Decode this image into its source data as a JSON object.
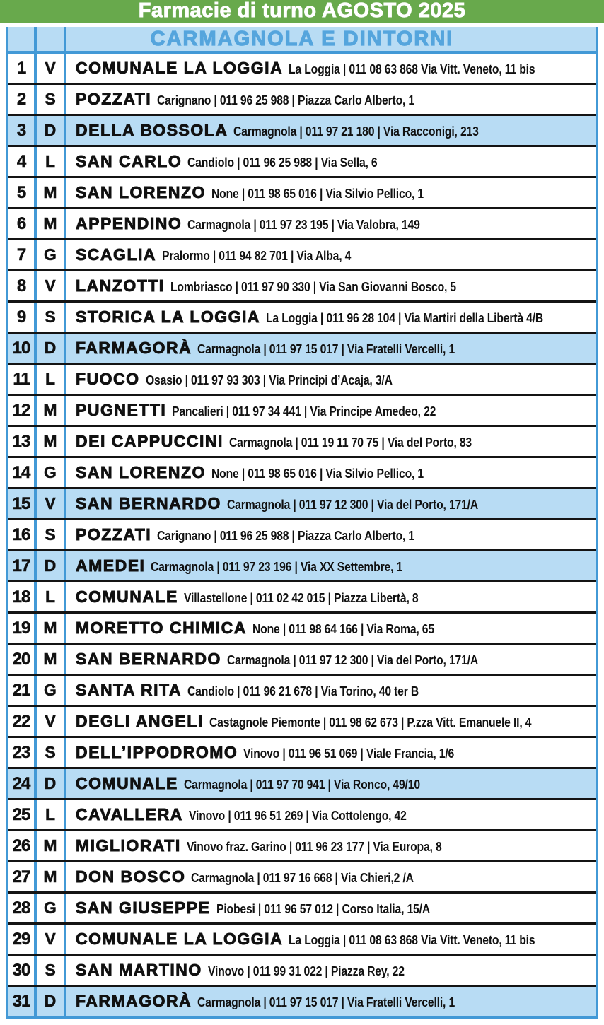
{
  "title": "Farmacie di turno AGOSTO 2025",
  "subtitle": "CARMAGNOLA E DINTORNI",
  "colors": {
    "header_green": "#68a94c",
    "border_blue": "#4299d6",
    "highlight_blue": "#b8dcf4",
    "subtitle_blue": "#55a5dd"
  },
  "rows": [
    {
      "day": "1",
      "weekday": "V",
      "name": "COMUNALE LA LOGGIA",
      "details": "La Loggia | 011 08 63 868 Via Vitt. Veneto, 11 bis",
      "highlight": false
    },
    {
      "day": "2",
      "weekday": "S",
      "name": "POZZATI",
      "details": "Carignano | 011 96 25 988 | Piazza Carlo Alberto, 1",
      "highlight": false
    },
    {
      "day": "3",
      "weekday": "D",
      "name": "DELLA BOSSOLA",
      "details": "Carmagnola | 011 97 21 180 | Via Racconigi, 213",
      "highlight": true
    },
    {
      "day": "4",
      "weekday": "L",
      "name": "SAN CARLO",
      "details": "Candiolo | 011 96 25 988 | Via Sella, 6",
      "highlight": false
    },
    {
      "day": "5",
      "weekday": "M",
      "name": "SAN LORENZO",
      "details": "None | 011 98 65 016 | Via Silvio Pellico, 1",
      "highlight": false
    },
    {
      "day": "6",
      "weekday": "M",
      "name": "APPENDINO",
      "details": "Carmagnola | 011 97 23 195 | Via Valobra, 149",
      "highlight": false
    },
    {
      "day": "7",
      "weekday": "G",
      "name": "SCAGLIA",
      "details": "Pralormo | 011 94 82 701 | Via Alba, 4",
      "highlight": false
    },
    {
      "day": "8",
      "weekday": "V",
      "name": "LANZOTTI",
      "details": "Lombriasco | 011 97 90 330 | Via San Giovanni Bosco, 5",
      "highlight": false
    },
    {
      "day": "9",
      "weekday": "S",
      "name": "STORICA LA LOGGIA",
      "details": "La Loggia | 011 96 28 104 | Via Martiri della Libertà 4/B",
      "highlight": false
    },
    {
      "day": "10",
      "weekday": "D",
      "name": "FARMAGORÀ",
      "details": "Carmagnola | 011 97 15 017 | Via Fratelli Vercelli, 1",
      "highlight": true
    },
    {
      "day": "11",
      "weekday": "L",
      "name": "FUOCO",
      "details": "Osasio | 011 97 93 303 | Via Principi d’Acaja, 3/A",
      "highlight": false
    },
    {
      "day": "12",
      "weekday": "M",
      "name": "PUGNETTI",
      "details": "Pancalieri | 011 97 34 441 | Via Principe Amedeo, 22",
      "highlight": false
    },
    {
      "day": "13",
      "weekday": "M",
      "name": "DEI CAPPUCCINI",
      "details": "Carmagnola | 011 19 11 70 75 | Via del Porto, 83",
      "highlight": false
    },
    {
      "day": "14",
      "weekday": "G",
      "name": "SAN LORENZO",
      "details": "None | 011 98 65 016 | Via Silvio Pellico, 1",
      "highlight": false
    },
    {
      "day": "15",
      "weekday": "V",
      "name": "SAN BERNARDO",
      "details": "Carmagnola | 011 97 12 300 | Via del Porto, 171/A",
      "highlight": true
    },
    {
      "day": "16",
      "weekday": "S",
      "name": "POZZATI",
      "details": "Carignano | 011 96 25 988 | Piazza Carlo Alberto, 1",
      "highlight": false
    },
    {
      "day": "17",
      "weekday": "D",
      "name": "AMEDEI",
      "details": "Carmagnola | 011 97 23 196 | Via XX Settembre, 1",
      "highlight": true
    },
    {
      "day": "18",
      "weekday": "L",
      "name": "COMUNALE",
      "details": "Villastellone | 011 02 42 015 | Piazza Libertà, 8",
      "highlight": false
    },
    {
      "day": "19",
      "weekday": "M",
      "name": "MORETTO CHIMICA",
      "details": "None | 011 98 64 166 | Via Roma, 65",
      "highlight": false
    },
    {
      "day": "20",
      "weekday": "M",
      "name": "SAN BERNARDO",
      "details": "Carmagnola | 011 97 12 300 | Via del Porto, 171/A",
      "highlight": false
    },
    {
      "day": "21",
      "weekday": "G",
      "name": "SANTA RITA",
      "details": "Candiolo | 011 96 21 678 | Via Torino, 40 ter B",
      "highlight": false
    },
    {
      "day": "22",
      "weekday": "V",
      "name": "DEGLI ANGELI",
      "details": "Castagnole Piemonte | 011 98 62 673 | P.zza Vitt. Emanuele II, 4",
      "highlight": false
    },
    {
      "day": "23",
      "weekday": "S",
      "name": "DELL’IPPODROMO",
      "details": "Vinovo | 011 96 51 069 | Viale Francia, 1/6",
      "highlight": false
    },
    {
      "day": "24",
      "weekday": "D",
      "name": "COMUNALE",
      "details": "Carmagnola | 011 97 70 941 | Via Ronco, 49/10",
      "highlight": true
    },
    {
      "day": "25",
      "weekday": "L",
      "name": "CAVALLERA",
      "details": "Vinovo | 011 96 51 269 | Via Cottolengo, 42",
      "highlight": false
    },
    {
      "day": "26",
      "weekday": "M",
      "name": "MIGLIORATI",
      "details": "Vinovo fraz. Garino | 011 96 23 177 | Via Europa, 8",
      "highlight": false
    },
    {
      "day": "27",
      "weekday": "M",
      "name": "DON BOSCO",
      "details": "Carmagnola | 011 97 16 668 | Via Chieri,2 /A",
      "highlight": false
    },
    {
      "day": "28",
      "weekday": "G",
      "name": "SAN GIUSEPPE",
      "details": "Piobesi | 011 96 57 012 | Corso Italia, 15/A",
      "highlight": false
    },
    {
      "day": "29",
      "weekday": "V",
      "name": "COMUNALE LA LOGGIA",
      "details": "La Loggia | 011 08 63 868 Via Vitt. Veneto, 11 bis",
      "highlight": false
    },
    {
      "day": "30",
      "weekday": "S",
      "name": "SAN MARTINO",
      "details": "Vinovo | 011 99 31 022 | Piazza Rey, 22",
      "highlight": false
    },
    {
      "day": "31",
      "weekday": "D",
      "name": "FARMAGORÀ",
      "details": "Carmagnola | 011 97 15 017 | Via Fratelli Vercelli, 1",
      "highlight": true
    }
  ]
}
